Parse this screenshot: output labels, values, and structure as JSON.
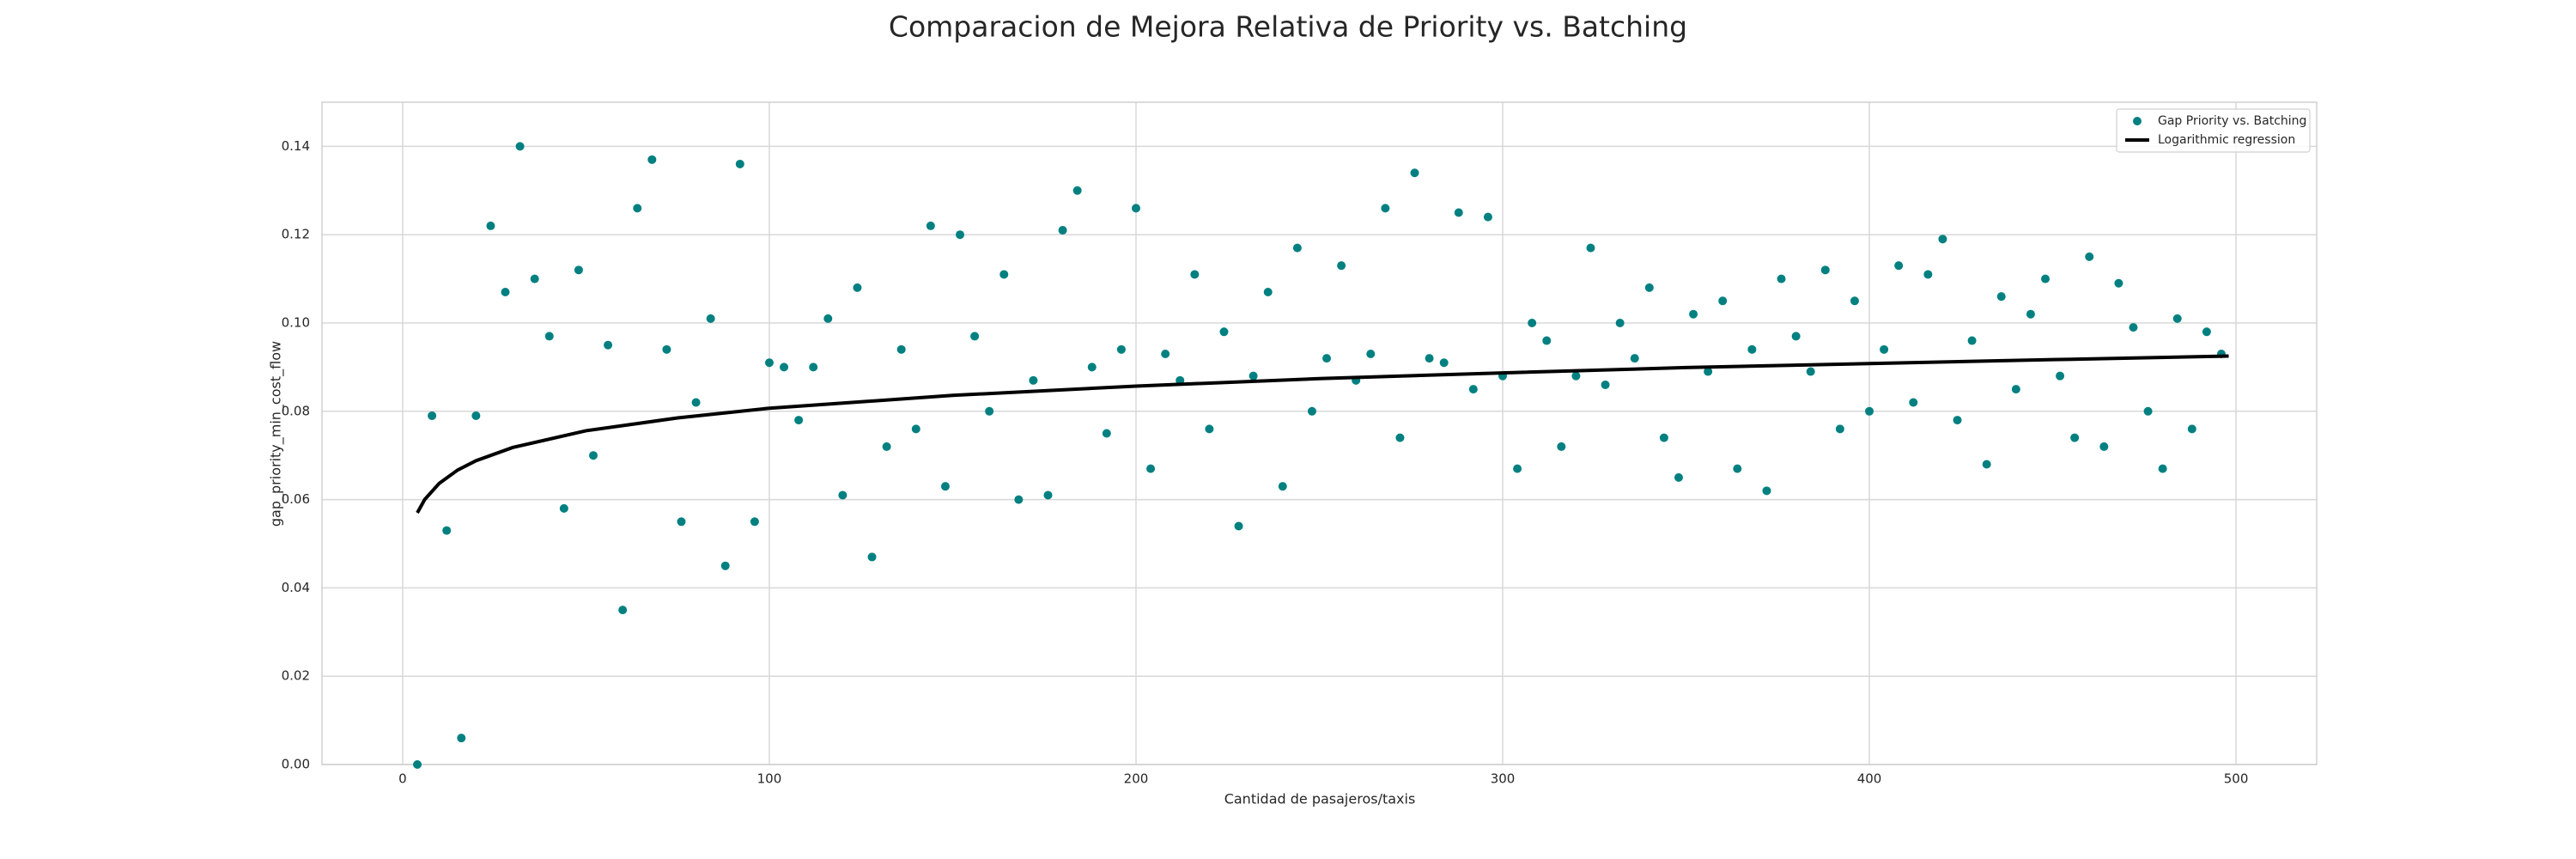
{
  "chart_data": {
    "type": "scatter",
    "title": "Comparacion de Mejora Relativa de Priority vs. Batching",
    "x_label": "Cantidad de pasajeros/taxis",
    "y_label": "gap_priority_min_cost_flow",
    "xlim": [
      -22,
      522
    ],
    "xticks": [
      0,
      100,
      200,
      300,
      400,
      500
    ],
    "ylim": [
      0,
      0.15
    ],
    "yticks": [
      {
        "value": 0,
        "label": "0.00"
      },
      0.02,
      0.04,
      0.06,
      0.08,
      {
        "value": 0.1,
        "label": "0.10"
      },
      0.12,
      0.14
    ],
    "grid": true,
    "legend": "upper right",
    "series": [
      {
        "name": "Gap Priority vs. Batching",
        "type": "scatter",
        "color": "#008080",
        "x": [
          4,
          8,
          12,
          16,
          20,
          24,
          28,
          32,
          36,
          40,
          44,
          48,
          52,
          56,
          60,
          64,
          68,
          72,
          76,
          80,
          84,
          88,
          92,
          96,
          100,
          104,
          108,
          112,
          116,
          120,
          124,
          128,
          132,
          136,
          140,
          144,
          148,
          152,
          156,
          160,
          164,
          168,
          172,
          176,
          180,
          184,
          188,
          192,
          196,
          200,
          204,
          208,
          212,
          216,
          220,
          224,
          228,
          232,
          236,
          240,
          244,
          248,
          252,
          256,
          260,
          264,
          268,
          272,
          276,
          280,
          284,
          288,
          292,
          296,
          300,
          304,
          308,
          312,
          316,
          320,
          324,
          328,
          332,
          336,
          340,
          344,
          348,
          352,
          356,
          360,
          364,
          368,
          372,
          376,
          380,
          384,
          388,
          392,
          396,
          400,
          404,
          408,
          412,
          416,
          420,
          424,
          428,
          432,
          436,
          440,
          444,
          448,
          452,
          456,
          460,
          464,
          468,
          472,
          476,
          480,
          484,
          488,
          492,
          496
        ],
        "values": [
          0.0,
          0.079,
          0.053,
          0.006,
          0.079,
          0.122,
          0.107,
          0.14,
          0.11,
          0.097,
          0.058,
          0.112,
          0.07,
          0.095,
          0.035,
          0.126,
          0.137,
          0.094,
          0.055,
          0.082,
          0.101,
          0.045,
          0.136,
          0.055,
          0.091,
          0.09,
          0.078,
          0.09,
          0.101,
          0.061,
          0.108,
          0.047,
          0.072,
          0.094,
          0.076,
          0.122,
          0.063,
          0.12,
          0.097,
          0.08,
          0.111,
          0.06,
          0.087,
          0.061,
          0.121,
          0.13,
          0.09,
          0.075,
          0.094,
          0.126,
          0.067,
          0.093,
          0.087,
          0.111,
          0.076,
          0.098,
          0.054,
          0.088,
          0.107,
          0.063,
          0.117,
          0.08,
          0.092,
          0.113,
          0.087,
          0.093,
          0.126,
          0.074,
          0.134,
          0.092,
          0.091,
          0.125,
          0.085,
          0.124,
          0.088,
          0.067,
          0.1,
          0.096,
          0.072,
          0.088,
          0.117,
          0.086,
          0.1,
          0.092,
          0.108,
          0.074,
          0.065,
          0.102,
          0.089,
          0.105,
          0.067,
          0.094,
          0.062,
          0.11,
          0.097,
          0.089,
          0.112,
          0.076,
          0.105,
          0.08,
          0.094,
          0.113,
          0.082,
          0.111,
          0.119,
          0.078,
          0.096,
          0.068,
          0.106,
          0.085,
          0.102,
          0.11,
          0.088,
          0.074,
          0.115,
          0.072,
          0.109,
          0.099,
          0.08,
          0.067,
          0.101,
          0.076,
          0.098,
          0.093
        ]
      },
      {
        "name": "Logarithmic regression",
        "type": "line",
        "color": "#000000",
        "x": [
          4,
          6,
          10,
          15,
          20,
          30,
          50,
          75,
          100,
          150,
          200,
          250,
          300,
          350,
          400,
          450,
          498
        ],
        "values": [
          0.057,
          0.06,
          0.0637,
          0.0667,
          0.0688,
          0.0718,
          0.0756,
          0.0785,
          0.0807,
          0.0836,
          0.0857,
          0.0874,
          0.0887,
          0.0899,
          0.0908,
          0.0917,
          0.0925
        ]
      }
    ]
  }
}
